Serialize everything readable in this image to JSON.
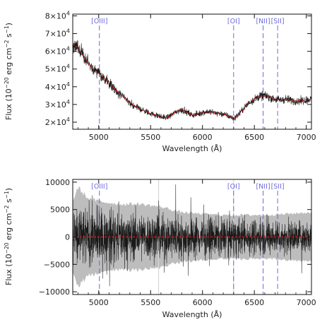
{
  "colors": {
    "line_marker": "#6b6bdc",
    "model_fit": "#e01b1b",
    "spectrum": "#1a1a1a",
    "error_band": "#bdbdbd",
    "axes": "#111111"
  },
  "chart_data": [
    {
      "type": "line",
      "panel": "top",
      "xlabel": "Wavelength (Å)",
      "ylabel_parts": {
        "base": "Flux (10",
        "exp1": "−20",
        "mid": " erg cm",
        "exp2": "−2",
        "mid2": " s",
        "exp3": "−1",
        "end": ")"
      },
      "xlim": [
        4750,
        7050
      ],
      "ylim": [
        16000,
        81000
      ],
      "x_ticks": [
        {
          "value": 5000,
          "label": "5000"
        },
        {
          "value": 5500,
          "label": "5500"
        },
        {
          "value": 6000,
          "label": "6000"
        },
        {
          "value": 6500,
          "label": "6500"
        },
        {
          "value": 7000,
          "label": "7000"
        }
      ],
      "y_ticks": [
        {
          "value": 20000,
          "mantissa": "2×10",
          "exp": "4"
        },
        {
          "value": 30000,
          "mantissa": "3×10",
          "exp": "4"
        },
        {
          "value": 40000,
          "mantissa": "4×10",
          "exp": "4"
        },
        {
          "value": 50000,
          "mantissa": "5×10",
          "exp": "4"
        },
        {
          "value": 60000,
          "mantissa": "6×10",
          "exp": "4"
        },
        {
          "value": 70000,
          "mantissa": "7×10",
          "exp": "4"
        },
        {
          "value": 80000,
          "mantissa": "8×10",
          "exp": "4"
        }
      ],
      "emission_lines": [
        {
          "label": "[OIII]",
          "wavelength": 5007
        },
        {
          "label": "[OI]",
          "wavelength": 6300
        },
        {
          "label": "[NII]",
          "wavelength": 6584
        },
        {
          "label": "[SII]",
          "wavelength": 6724
        }
      ],
      "series": [
        {
          "role": "spectrum",
          "x": [
            4750,
            4800,
            4850,
            4900,
            4950,
            5000,
            5050,
            5100,
            5150,
            5200,
            5250,
            5300,
            5350,
            5400,
            5450,
            5500,
            5550,
            5600,
            5650,
            5700,
            5750,
            5800,
            5850,
            5900,
            5950,
            6000,
            6050,
            6100,
            6150,
            6200,
            6250,
            6300,
            6350,
            6400,
            6450,
            6500,
            6550,
            6600,
            6650,
            6700,
            6750,
            6800,
            6850,
            6900,
            6950,
            7000,
            7050
          ],
          "y": [
            64000,
            62000,
            58000,
            53000,
            50000,
            47500,
            45000,
            42000,
            39000,
            36000,
            33500,
            31000,
            29000,
            27500,
            26000,
            25000,
            24000,
            23000,
            22500,
            24000,
            26000,
            27000,
            25500,
            24000,
            24500,
            25500,
            26000,
            25500,
            25000,
            24500,
            23500,
            22000,
            24500,
            28000,
            31000,
            33000,
            34500,
            35000,
            34000,
            33000,
            32500,
            33000,
            32500,
            32000,
            32000,
            32500,
            33000
          ]
        }
      ]
    },
    {
      "type": "line",
      "panel": "bottom",
      "xlabel": "Wavelength (Å)",
      "ylabel_parts": {
        "base": "Flux (10",
        "exp1": "−20",
        "mid": " erg cm",
        "exp2": "−2",
        "mid2": " s",
        "exp3": "−1",
        "end": ")"
      },
      "xlim": [
        4750,
        7050
      ],
      "ylim": [
        -10500,
        10500
      ],
      "x_ticks": [
        {
          "value": 5000,
          "label": "5000"
        },
        {
          "value": 5500,
          "label": "5500"
        },
        {
          "value": 6000,
          "label": "6000"
        },
        {
          "value": 6500,
          "label": "6500"
        },
        {
          "value": 7000,
          "label": "7000"
        }
      ],
      "y_ticks": [
        {
          "value": 10000,
          "label": "10000"
        },
        {
          "value": 5000,
          "label": "5000"
        },
        {
          "value": 0,
          "label": "0"
        },
        {
          "value": -5000,
          "label": "−5000"
        },
        {
          "value": -10000,
          "label": "−10000"
        }
      ],
      "emission_lines": [
        {
          "label": "[OIII]",
          "wavelength": 5007
        },
        {
          "label": "[OI]",
          "wavelength": 6300
        },
        {
          "label": "[NII]",
          "wavelength": 6584
        },
        {
          "label": "[SII]",
          "wavelength": 6724
        }
      ],
      "sky_lines": [
        5577,
        6300
      ],
      "model_level": 0,
      "series": [
        {
          "role": "residual_envelope",
          "x": [
            4750,
            4800,
            4850,
            4900,
            5000,
            5200,
            5400,
            5600,
            5800,
            6000,
            6200,
            6400,
            6600,
            6800,
            7050
          ],
          "y": [
            9000,
            9500,
            8500,
            8000,
            7500,
            7000,
            6500,
            6500,
            6000,
            5500,
            5200,
            5000,
            4800,
            4500,
            4500
          ]
        },
        {
          "role": "error_band",
          "x": [
            4750,
            4800,
            4850,
            4900,
            5000,
            5200,
            5400,
            5600,
            5800,
            6000,
            6200,
            6400,
            6600,
            6800,
            7050
          ],
          "y": [
            6500,
            9000,
            8000,
            7000,
            6500,
            6000,
            6000,
            5500,
            4500,
            4200,
            4000,
            4000,
            4000,
            4200,
            4500
          ]
        }
      ]
    }
  ]
}
